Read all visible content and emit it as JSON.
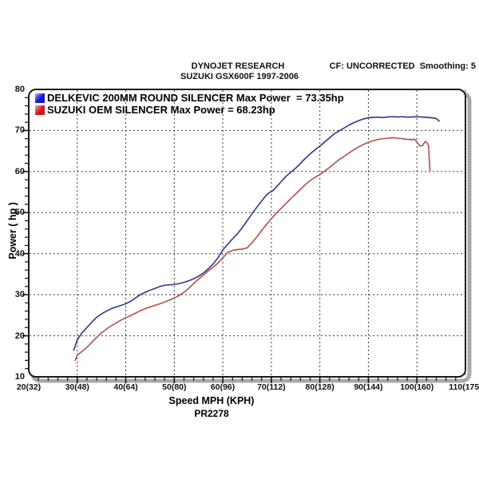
{
  "header": {
    "line1": "DYNOJET RESEARCH",
    "line2": "SUZUKI GSX600F 1997-2006",
    "correction": "CF: UNCORRECTED  Smoothing: 5"
  },
  "legend": {
    "entries": [
      {
        "label": "DELKEVIC 200MM ROUND SILENCER Max Power  = 73.35hp",
        "color": "#1515cf",
        "highlight": "#aab6f2"
      },
      {
        "label": "SUZUKI OEM SILENCER Max Power = 68.23hp",
        "color": "#d31717",
        "highlight": "#f2aaaa"
      }
    ]
  },
  "axes": {
    "ylabel": "Power ( hp )",
    "xlabel": "Speed MPH (KPH)",
    "footnote": "PR2278",
    "x_ticks": [
      {
        "mph": 20,
        "label": "20(32)"
      },
      {
        "mph": 30,
        "label": "30(48)"
      },
      {
        "mph": 40,
        "label": "40(64)"
      },
      {
        "mph": 50,
        "label": "50(80)"
      },
      {
        "mph": 60,
        "label": "60(96)"
      },
      {
        "mph": 70,
        "label": "70(112)"
      },
      {
        "mph": 80,
        "label": "80(128)"
      },
      {
        "mph": 90,
        "label": "90(144)"
      },
      {
        "mph": 100,
        "label": "100(160)"
      },
      {
        "mph": 110,
        "label": "110(175)"
      }
    ],
    "y_ticks": [
      10,
      20,
      30,
      40,
      50,
      60,
      70,
      80
    ]
  },
  "chart_data": {
    "type": "line",
    "title": "DYNOJET RESEARCH — SUZUKI GSX600F 1997-2006",
    "xlabel": "Speed MPH (KPH)",
    "ylabel": "Power ( hp )",
    "xlim": [
      20,
      110
    ],
    "ylim": [
      10,
      80
    ],
    "grid": true,
    "x_gridlines": [
      30,
      40,
      50,
      60,
      70,
      80,
      90,
      100,
      110
    ],
    "y_gridlines": [
      20,
      30,
      40,
      50,
      60,
      70
    ],
    "minor_tick_step": 2,
    "legend_position": "top-left",
    "series": [
      {
        "name": "DELKEVIC 200MM ROUND SILENCER",
        "max_power_hp": 73.35,
        "color": "#3b3f8f",
        "points": [
          [
            29.3,
            16.5
          ],
          [
            30,
            19
          ],
          [
            31,
            20.8
          ],
          [
            32,
            22
          ],
          [
            33,
            23.3
          ],
          [
            34,
            24.5
          ],
          [
            35,
            25.3
          ],
          [
            36,
            26
          ],
          [
            37,
            26.6
          ],
          [
            38,
            27
          ],
          [
            39,
            27.4
          ],
          [
            40,
            27.8
          ],
          [
            41,
            28.4
          ],
          [
            42,
            29.2
          ],
          [
            43,
            30
          ],
          [
            44,
            30.6
          ],
          [
            45,
            31.1
          ],
          [
            46,
            31.5
          ],
          [
            47,
            32
          ],
          [
            48,
            32.3
          ],
          [
            49,
            32.4
          ],
          [
            50,
            32.5
          ],
          [
            51,
            32.7
          ],
          [
            52,
            33
          ],
          [
            53,
            33.4
          ],
          [
            54,
            33.9
          ],
          [
            55,
            34.5
          ],
          [
            56,
            35.3
          ],
          [
            57,
            36.3
          ],
          [
            58,
            37.5
          ],
          [
            59,
            39
          ],
          [
            60,
            40.9
          ],
          [
            61,
            42.3
          ],
          [
            62,
            43.6
          ],
          [
            63,
            44.8
          ],
          [
            64,
            46.3
          ],
          [
            65,
            48
          ],
          [
            66,
            49.7
          ],
          [
            67,
            51.3
          ],
          [
            68,
            52.8
          ],
          [
            69,
            54.3
          ],
          [
            69.6,
            54.9
          ],
          [
            70.3,
            55.3
          ],
          [
            71,
            56.2
          ],
          [
            72,
            57.5
          ],
          [
            73,
            58.8
          ],
          [
            74,
            59.8
          ],
          [
            75,
            60.8
          ],
          [
            76,
            62
          ],
          [
            77,
            63.2
          ],
          [
            78,
            64.3
          ],
          [
            79,
            65.3
          ],
          [
            80,
            66.2
          ],
          [
            81,
            67.2
          ],
          [
            82,
            68.2
          ],
          [
            83,
            69.2
          ],
          [
            84,
            69.9
          ],
          [
            85,
            70.6
          ],
          [
            86,
            71.3
          ],
          [
            87,
            71.9
          ],
          [
            88,
            72.4
          ],
          [
            89,
            72.8
          ],
          [
            90,
            73.1
          ],
          [
            91,
            73.2
          ],
          [
            92,
            73.25
          ],
          [
            93,
            73.15
          ],
          [
            94,
            73.3
          ],
          [
            95,
            73.35
          ],
          [
            96,
            73.3
          ],
          [
            97,
            73.35
          ],
          [
            98,
            73.25
          ],
          [
            99,
            73.3
          ],
          [
            100,
            73.35
          ],
          [
            101,
            73.3
          ],
          [
            102,
            73.2
          ],
          [
            103,
            73.1
          ],
          [
            104,
            72.9
          ],
          [
            104.6,
            72.3
          ]
        ]
      },
      {
        "name": "SUZUKI OEM SILENCER",
        "max_power_hp": 68.23,
        "color": "#b05a52",
        "points": [
          [
            29.6,
            14
          ],
          [
            30,
            15.3
          ],
          [
            31,
            16.2
          ],
          [
            32,
            17.2
          ],
          [
            33,
            18.4
          ],
          [
            34,
            19.6
          ],
          [
            35,
            20.7
          ],
          [
            36,
            21.6
          ],
          [
            37,
            22.4
          ],
          [
            38,
            23.1
          ],
          [
            39,
            23.8
          ],
          [
            40,
            24.4
          ],
          [
            41,
            24.9
          ],
          [
            42,
            25.5
          ],
          [
            43,
            26.1
          ],
          [
            44,
            26.6
          ],
          [
            45,
            27
          ],
          [
            46,
            27.4
          ],
          [
            47,
            27.8
          ],
          [
            48,
            28.2
          ],
          [
            49,
            28.7
          ],
          [
            50,
            29.2
          ],
          [
            51,
            29.8
          ],
          [
            52,
            30.6
          ],
          [
            53,
            31.6
          ],
          [
            54,
            32.7
          ],
          [
            55,
            33.8
          ],
          [
            56,
            34.8
          ],
          [
            57,
            35.8
          ],
          [
            58,
            36.7
          ],
          [
            59,
            37.7
          ],
          [
            60,
            39
          ],
          [
            61,
            40.3
          ],
          [
            62,
            40.8
          ],
          [
            63,
            41
          ],
          [
            64,
            41.1
          ],
          [
            65,
            41.4
          ],
          [
            66,
            42.6
          ],
          [
            67,
            44.1
          ],
          [
            68,
            45.6
          ],
          [
            69,
            47.1
          ],
          [
            70,
            48.5
          ],
          [
            71,
            49.8
          ],
          [
            72,
            51
          ],
          [
            73,
            52.2
          ],
          [
            74,
            53.4
          ],
          [
            75,
            54.5
          ],
          [
            76,
            55.7
          ],
          [
            77,
            56.8
          ],
          [
            78,
            57.8
          ],
          [
            79,
            58.6
          ],
          [
            80,
            59.3
          ],
          [
            81,
            60.1
          ],
          [
            82,
            61
          ],
          [
            83,
            62
          ],
          [
            84,
            62.9
          ],
          [
            85,
            63.7
          ],
          [
            86,
            64.5
          ],
          [
            87,
            65.3
          ],
          [
            88,
            66
          ],
          [
            89,
            66.6
          ],
          [
            90,
            67.1
          ],
          [
            91,
            67.5
          ],
          [
            92,
            67.8
          ],
          [
            93,
            68
          ],
          [
            94,
            68.1
          ],
          [
            95,
            68.23
          ],
          [
            96,
            68.1
          ],
          [
            97,
            68
          ],
          [
            98,
            67.85
          ],
          [
            99,
            67.75
          ],
          [
            99.5,
            67.9
          ],
          [
            100,
            67.2
          ],
          [
            100.6,
            66.2
          ],
          [
            101.2,
            66.4
          ],
          [
            101.7,
            67.3
          ],
          [
            102.1,
            67
          ],
          [
            102.4,
            66.3
          ],
          [
            102.55,
            63
          ],
          [
            102.7,
            60.3
          ]
        ]
      }
    ]
  }
}
